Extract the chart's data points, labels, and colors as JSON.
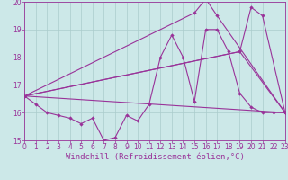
{
  "background_color": "#cce8e8",
  "grid_color": "#aacccc",
  "line_color": "#993399",
  "marker_color": "#993399",
  "xlim": [
    0,
    23
  ],
  "ylim": [
    15,
    20
  ],
  "yticks": [
    15,
    16,
    17,
    18,
    19,
    20
  ],
  "xlabel": "Windchill (Refroidissement éolien,°C)",
  "series1_x": [
    0,
    1,
    2,
    3,
    4,
    5,
    6,
    7,
    8,
    9,
    10,
    11,
    12,
    13,
    14,
    15,
    16,
    17,
    18,
    19,
    20,
    21,
    22,
    23
  ],
  "series1_y": [
    16.6,
    16.3,
    16.0,
    15.9,
    15.8,
    15.6,
    15.8,
    15.0,
    15.1,
    15.9,
    15.7,
    16.3,
    18.0,
    18.8,
    18.0,
    16.4,
    19.0,
    19.0,
    18.2,
    16.7,
    16.2,
    16.0,
    16.0,
    16.0
  ],
  "series2_x": [
    0,
    23
  ],
  "series2_y": [
    16.6,
    16.0
  ],
  "series3_x": [
    0,
    19,
    23
  ],
  "series3_y": [
    16.6,
    18.2,
    16.0
  ],
  "series4_x": [
    0,
    15,
    16,
    17,
    23
  ],
  "series4_y": [
    16.6,
    19.6,
    20.1,
    19.5,
    16.0
  ],
  "series5_x": [
    0,
    19,
    20,
    21,
    23
  ],
  "series5_y": [
    16.6,
    18.2,
    19.8,
    19.5,
    16.0
  ],
  "font_size_tick": 5.5,
  "font_size_label": 6.5
}
